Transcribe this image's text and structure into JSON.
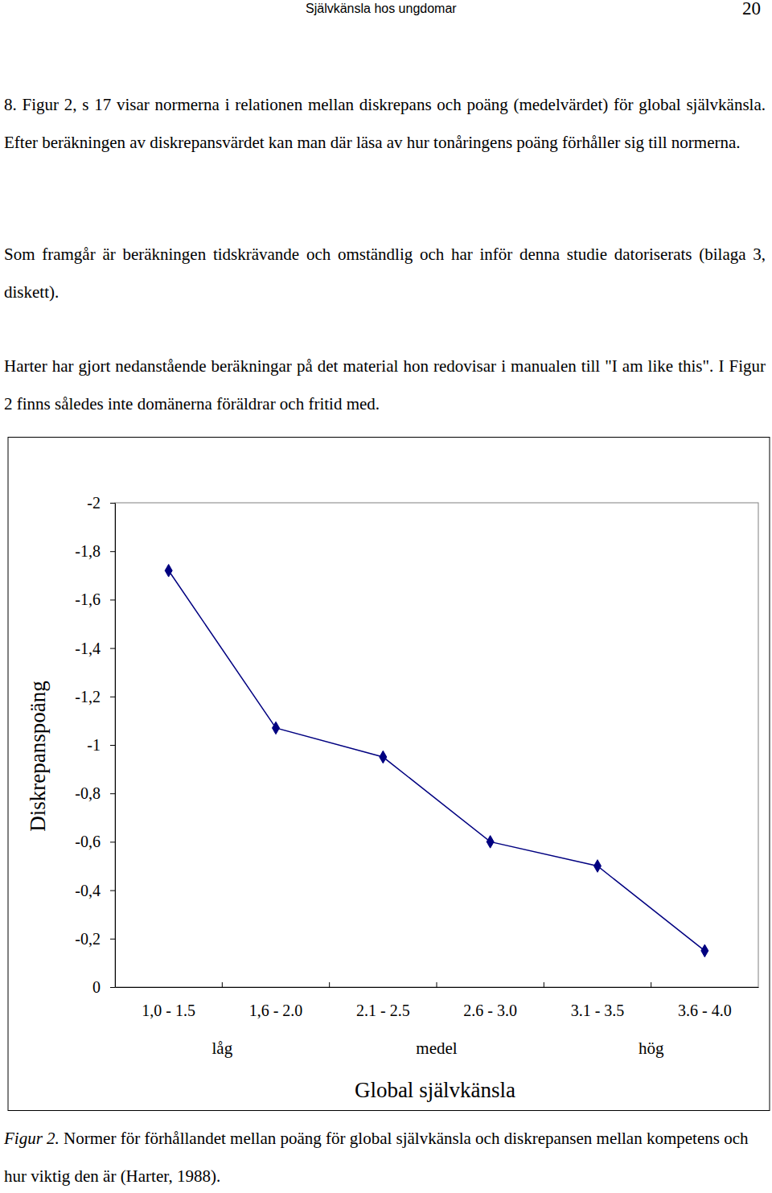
{
  "header": {
    "title": "Självkänsla hos ungdomar",
    "page": "20"
  },
  "paragraphs": [
    "8. Figur 2, s 17 visar normerna i relationen mellan diskrepans och poäng (medelvärdet) för global självkänsla. Efter beräkningen av diskrepansvärdet kan man där läsa av hur tonåringens poäng förhåller sig till normerna.",
    "Som framgår är beräkningen tidskrävande och omständlig och har inför denna studie datoriserats (bilaga 3, diskett).",
    "Harter har gjort nedanstående beräkningar på det material hon redovisar i manualen till \"I am like this\". I Figur 2 finns således inte domänerna föräldrar och fritid med."
  ],
  "chart_data": {
    "type": "line",
    "x_label": "Global självkänsla",
    "y_label": "Diskrepanspoäng",
    "categories": [
      "1,0 - 1.5",
      "1,6 - 2.0",
      "2.1 - 2.5",
      "2.6 - 3.0",
      "3.1 - 3.5",
      "3.6 - 4.0"
    ],
    "values": [
      -1.72,
      -1.07,
      -0.95,
      -0.6,
      -0.5,
      -0.15
    ],
    "color": "#000080",
    "marker": "diamond",
    "annotations": [
      "låg",
      "medel",
      "hög"
    ],
    "ylim": [
      0,
      -2
    ],
    "yticks": [
      -2,
      {
        "value": -1.8,
        "label": "-1,8"
      },
      {
        "value": -1.6,
        "label": "-1,6"
      },
      {
        "value": -1.4,
        "label": "-1,4"
      },
      {
        "value": -1.2,
        "label": "-1,2"
      },
      -1,
      {
        "value": -0.8,
        "label": "-0,8"
      },
      {
        "value": -0.6,
        "label": "-0,6"
      },
      {
        "value": -0.4,
        "label": "-0,4"
      },
      {
        "value": -0.2,
        "label": "-0,2"
      },
      0
    ]
  },
  "caption": {
    "label": "Figur 2.",
    "text": "Normer för förhållandet mellan poäng för global självkänsla och diskrepansen mellan kompetens och hur viktig den är (Harter, 1988)."
  }
}
